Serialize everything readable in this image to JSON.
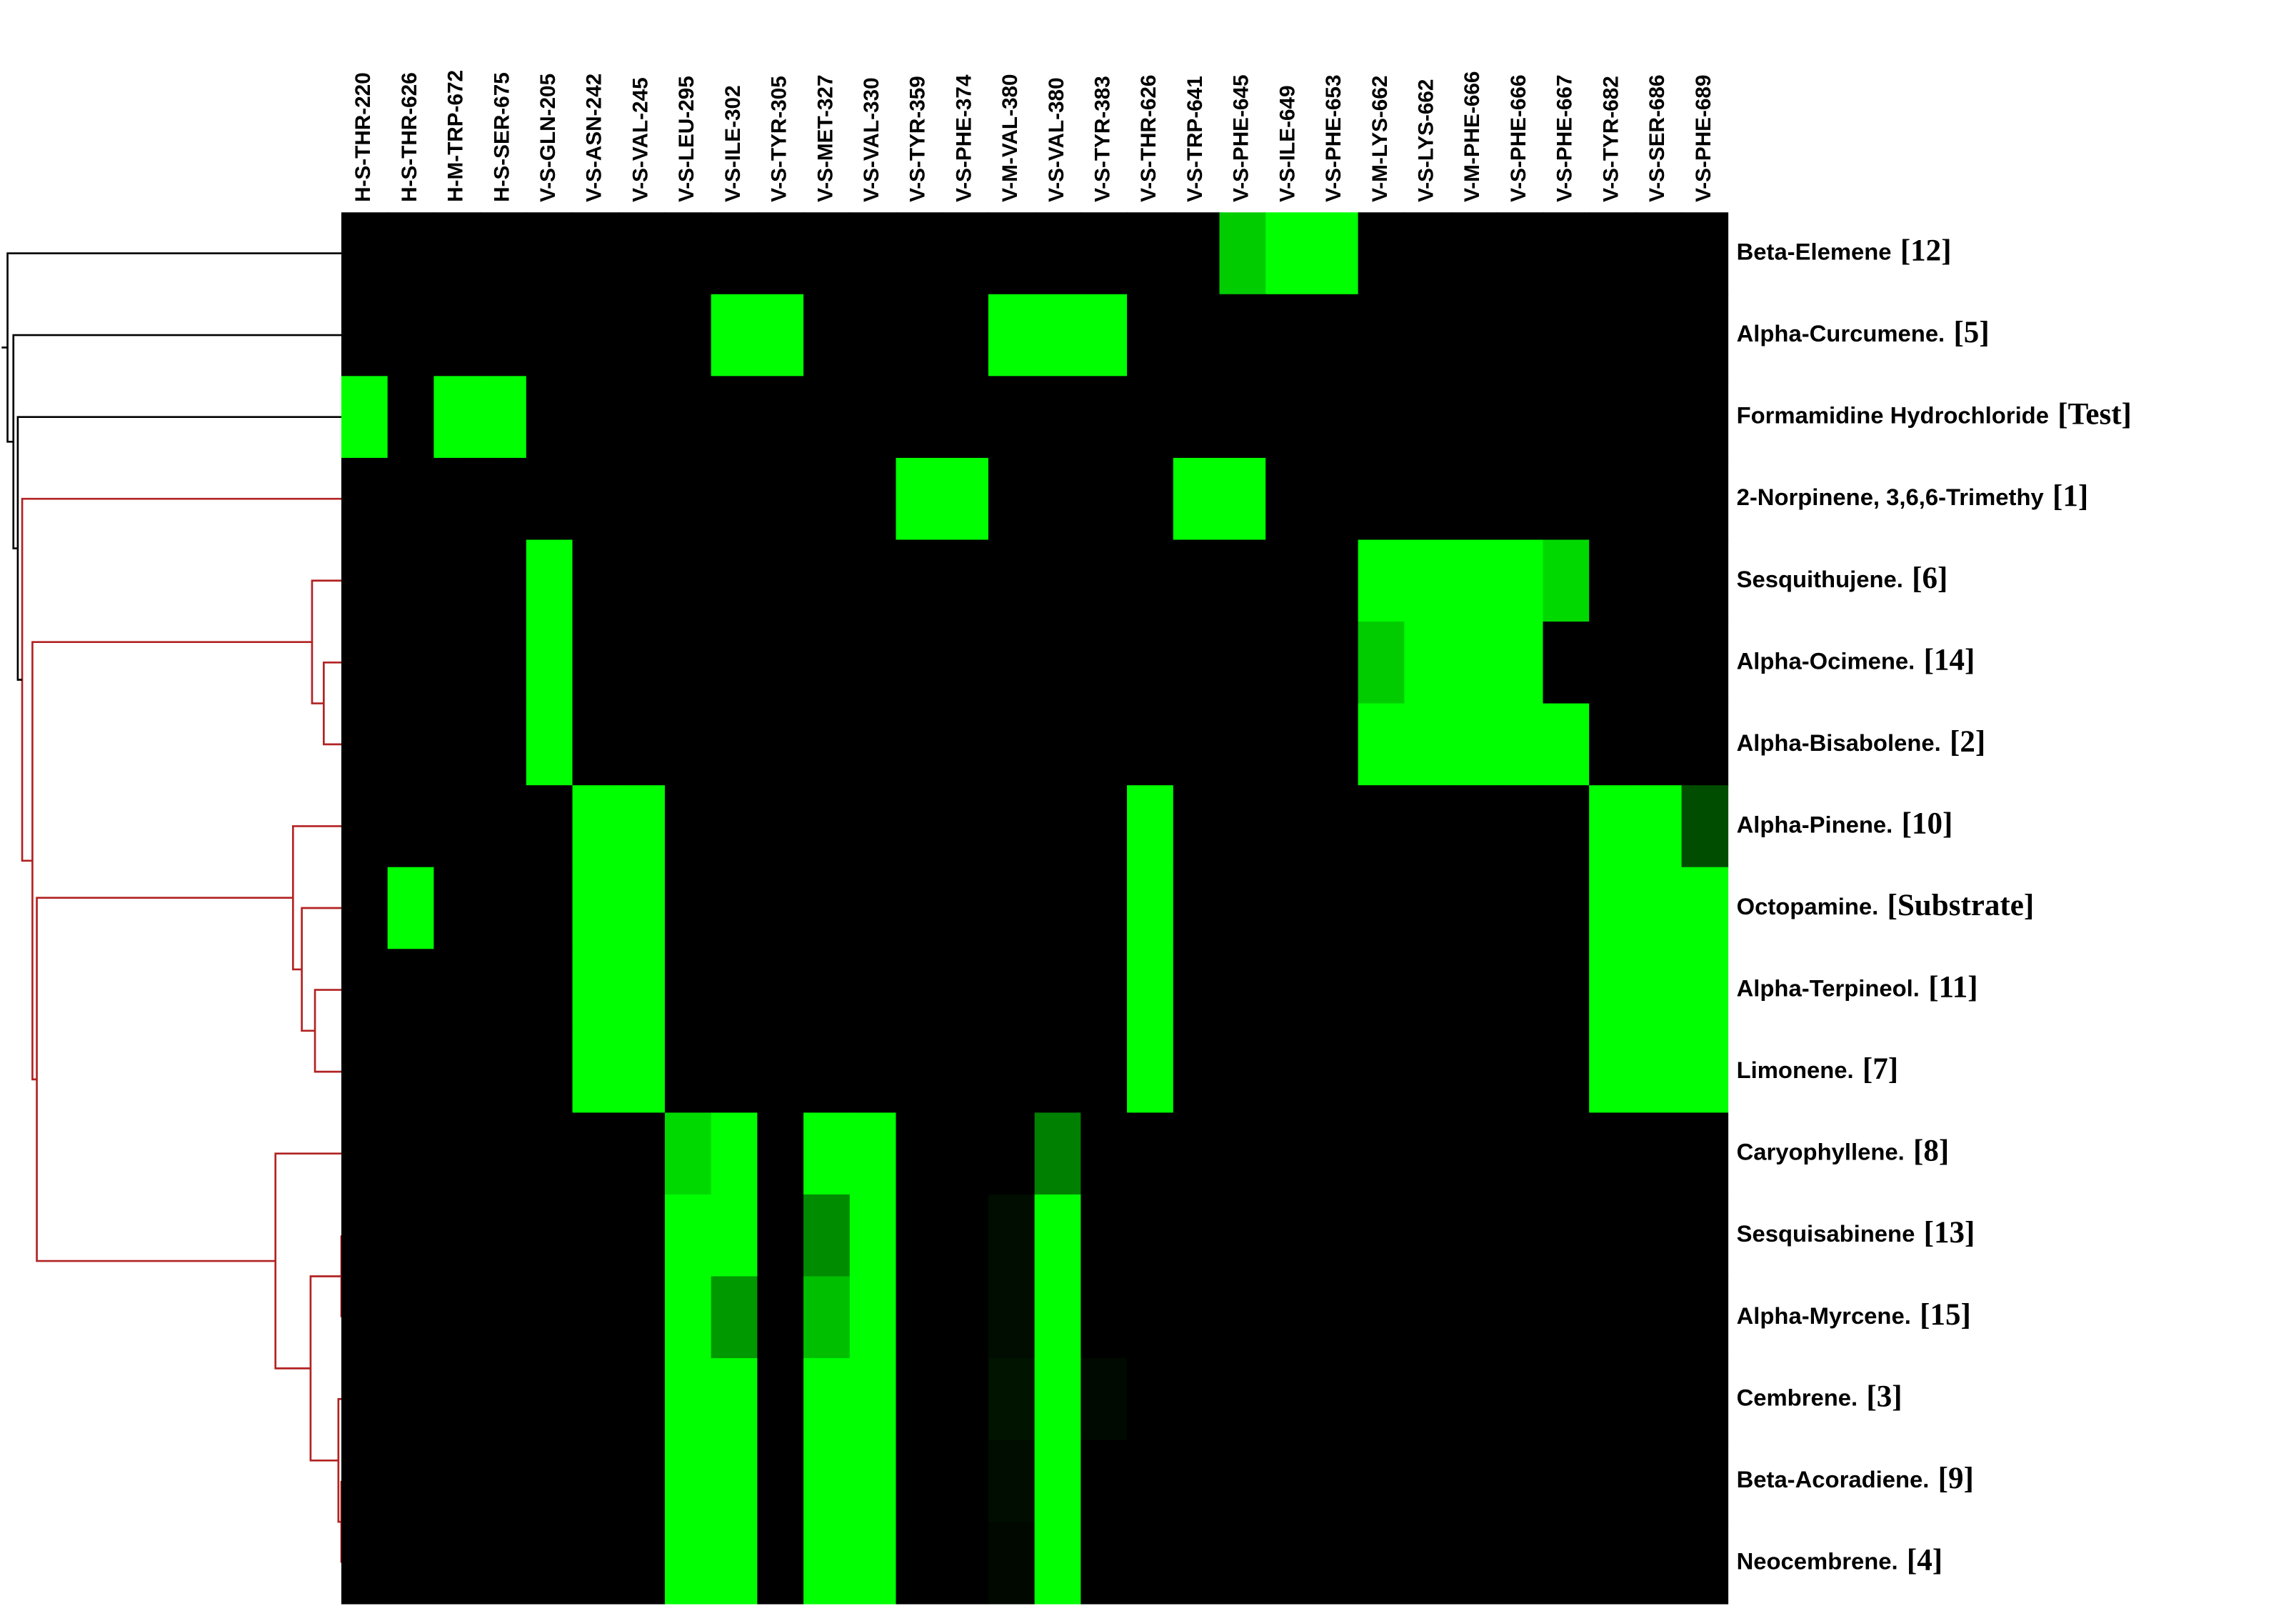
{
  "chart_data": {
    "type": "heatmap",
    "colors": [
      "#000000",
      "#00ff00"
    ],
    "columns": [
      "H-S-THR-220",
      "H-S-THR-626",
      "H-M-TRP-672",
      "H-S-SER-675",
      "V-S-GLN-205",
      "V-S-ASN-242",
      "V-S-VAL-245",
      "V-S-LEU-295",
      "V-S-ILE-302",
      "V-S-TYR-305",
      "V-S-MET-327",
      "V-S-VAL-330",
      "V-S-TYR-359",
      "V-S-PHE-374",
      "V-M-VAL-380",
      "V-S-VAL-380",
      "V-S-TYR-383",
      "V-S-THR-626",
      "V-S-TRP-641",
      "V-S-PHE-645",
      "V-S-ILE-649",
      "V-S-PHE-653",
      "V-M-LYS-662",
      "V-S-LYS-662",
      "V-M-PHE-666",
      "V-S-PHE-666",
      "V-S-PHE-667",
      "V-S-TYR-682",
      "V-S-SER-686",
      "V-S-PHE-689"
    ],
    "rows": [
      {
        "name": "Beta-Elemene",
        "tag": "[12]"
      },
      {
        "name": "Alpha-Curcumene.",
        "tag": "[5]"
      },
      {
        "name": "Formamidine Hydrochloride",
        "tag": "[Test]"
      },
      {
        "name": "2-Norpinene, 3,6,6-Trimethy",
        "tag": "[1]"
      },
      {
        "name": "Sesquithujene.",
        "tag": "[6]"
      },
      {
        "name": "Alpha-Ocimene.",
        "tag": "[14]"
      },
      {
        "name": "Alpha-Bisabolene.",
        "tag": "[2]"
      },
      {
        "name": "Alpha-Pinene.",
        "tag": "[10]"
      },
      {
        "name": "Octopamine.",
        "tag": "[Substrate]"
      },
      {
        "name": "Alpha-Terpineol.",
        "tag": "[11]"
      },
      {
        "name": "Limonene.",
        "tag": "[7]"
      },
      {
        "name": "Caryophyllene.",
        "tag": "[8]"
      },
      {
        "name": "Sesquisabinene",
        "tag": "[13]"
      },
      {
        "name": "Alpha-Myrcene.",
        "tag": "[15]"
      },
      {
        "name": "Cembrene.",
        "tag": "[3]"
      },
      {
        "name": "Beta-Acoradiene.",
        "tag": "[9]"
      },
      {
        "name": "Neocembrene.",
        "tag": "[4]"
      }
    ],
    "values": [
      [
        0,
        0,
        0,
        0,
        0,
        0,
        0,
        0,
        0,
        0,
        0,
        0,
        0,
        0,
        0,
        0,
        0,
        0,
        0,
        0.8,
        1,
        1,
        0,
        0,
        0,
        0,
        0,
        0,
        0,
        0
      ],
      [
        0,
        0,
        0,
        0,
        0,
        0,
        0,
        0,
        1,
        1,
        0,
        0,
        0,
        0,
        1,
        1,
        1,
        0,
        0,
        0,
        0,
        0,
        0,
        0,
        0,
        0,
        0,
        0,
        0,
        0
      ],
      [
        1,
        0,
        1,
        1,
        0,
        0,
        0,
        0,
        0,
        0,
        0,
        0,
        0,
        0,
        0,
        0,
        0,
        0,
        0,
        0,
        0,
        0,
        0,
        0,
        0,
        0,
        0,
        0,
        0,
        0
      ],
      [
        0,
        0,
        0,
        0,
        0,
        0,
        0,
        0,
        0,
        0,
        0,
        0,
        1,
        1,
        0,
        0,
        0,
        0,
        1,
        1,
        0,
        0,
        0,
        0,
        0,
        0,
        0,
        0,
        0,
        0
      ],
      [
        0,
        0,
        0,
        0,
        1,
        0,
        0,
        0,
        0,
        0,
        0,
        0,
        0,
        0,
        0,
        0,
        0,
        0,
        0,
        0,
        0,
        0,
        1,
        1,
        1,
        1,
        0.85,
        0,
        0,
        0
      ],
      [
        0,
        0,
        0,
        0,
        1,
        0,
        0,
        0,
        0,
        0,
        0,
        0,
        0,
        0,
        0,
        0,
        0,
        0,
        0,
        0,
        0,
        0,
        0.8,
        1,
        1,
        1,
        0,
        0,
        0,
        0
      ],
      [
        0,
        0,
        0,
        0,
        1,
        0,
        0,
        0,
        0,
        0,
        0,
        0,
        0,
        0,
        0,
        0,
        0,
        0,
        0,
        0,
        0,
        0,
        1,
        1,
        1,
        1,
        1,
        0,
        0,
        0
      ],
      [
        0,
        0,
        0,
        0,
        0,
        1,
        1,
        0,
        0,
        0,
        0,
        0,
        0,
        0,
        0,
        0,
        0,
        1,
        0,
        0,
        0,
        0,
        0,
        0,
        0,
        0,
        0,
        1,
        1,
        0.3
      ],
      [
        0,
        1,
        0,
        0,
        0,
        1,
        1,
        0,
        0,
        0,
        0,
        0,
        0,
        0,
        0,
        0,
        0,
        1,
        0,
        0,
        0,
        0,
        0,
        0,
        0,
        0,
        0,
        1,
        1,
        1
      ],
      [
        0,
        0,
        0,
        0,
        0,
        1,
        1,
        0,
        0,
        0,
        0,
        0,
        0,
        0,
        0,
        0,
        0,
        1,
        0,
        0,
        0,
        0,
        0,
        0,
        0,
        0,
        0,
        1,
        1,
        1
      ],
      [
        0,
        0,
        0,
        0,
        0,
        1,
        1,
        0,
        0,
        0,
        0,
        0,
        0,
        0,
        0,
        0,
        0,
        1,
        0,
        0,
        0,
        0,
        0,
        0,
        0,
        0,
        0,
        1,
        1,
        1
      ],
      [
        0,
        0,
        0,
        0,
        0,
        0,
        0,
        0.85,
        1,
        0,
        1,
        1,
        0,
        0,
        0,
        0.5,
        0,
        0,
        0,
        0,
        0,
        0,
        0,
        0,
        0,
        0,
        0,
        0,
        0,
        0
      ],
      [
        0,
        0,
        0,
        0,
        0,
        0,
        0,
        1,
        1,
        0,
        0.55,
        1,
        0,
        0,
        0.05,
        1,
        0,
        0,
        0,
        0,
        0,
        0,
        0,
        0,
        0,
        0,
        0,
        0,
        0,
        0
      ],
      [
        0,
        0,
        0,
        0,
        0,
        0,
        0,
        1,
        0.6,
        0,
        0.75,
        1,
        0,
        0,
        0.05,
        1,
        0,
        0,
        0,
        0,
        0,
        0,
        0,
        0,
        0,
        0,
        0,
        0,
        0,
        0
      ],
      [
        0,
        0,
        0,
        0,
        0,
        0,
        0,
        1,
        1,
        0,
        1,
        1,
        0,
        0,
        0.08,
        1,
        0.04,
        0,
        0,
        0,
        0,
        0,
        0,
        0,
        0,
        0,
        0,
        0,
        0,
        0
      ],
      [
        0,
        0,
        0,
        0,
        0,
        0,
        0,
        1,
        1,
        0,
        1,
        1,
        0,
        0,
        0.05,
        1,
        0,
        0,
        0,
        0,
        0,
        0,
        0,
        0,
        0,
        0,
        0,
        0,
        0,
        0
      ],
      [
        0,
        0,
        0,
        0,
        0,
        0,
        0,
        1,
        1,
        0,
        1,
        1,
        0,
        0,
        0.03,
        1,
        0,
        0,
        0,
        0,
        0,
        0,
        0,
        0,
        0,
        0,
        0,
        0,
        0,
        0
      ]
    ]
  }
}
